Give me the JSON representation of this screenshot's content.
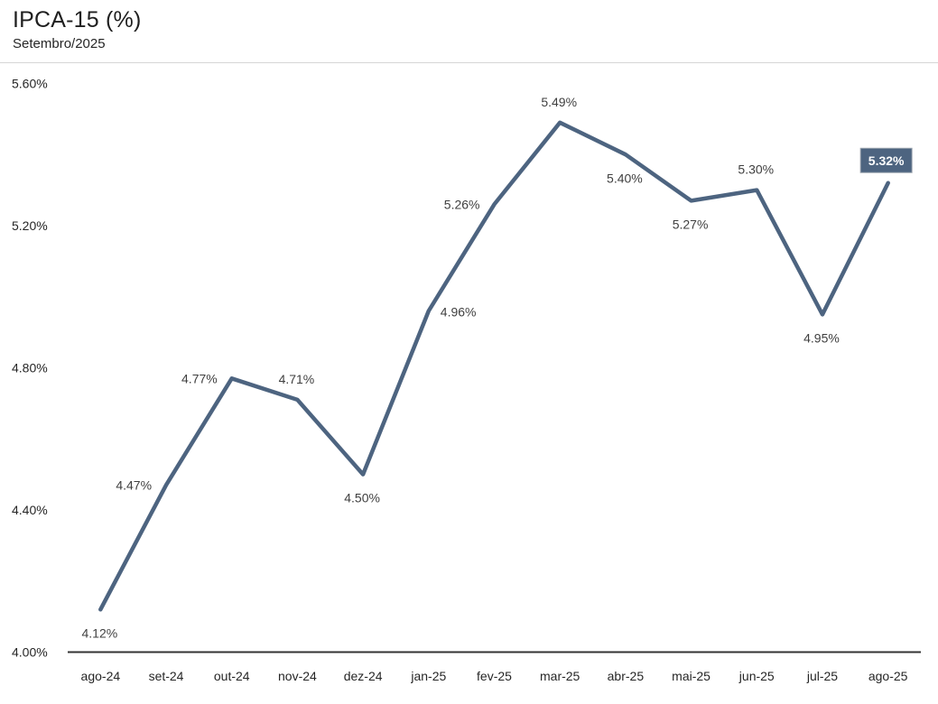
{
  "header": {
    "title": "IPCA-15 (%)",
    "subtitle": "Setembro/2025"
  },
  "colors": {
    "line": "#4d6480",
    "highlight_box_fill": "#4d6480",
    "highlight_box_border": "#9aa3ae",
    "highlight_text": "#ffffff",
    "data_label": "#3f3f3f",
    "axis_line": "#333333",
    "tick_label": "#262626",
    "divider": "#d6d6d6"
  },
  "chart_data": {
    "type": "line",
    "title": "IPCA-15 (%)",
    "subtitle": "Setembro/2025",
    "categories": [
      "ago-24",
      "set-24",
      "out-24",
      "nov-24",
      "dez-24",
      "jan-25",
      "fev-25",
      "mar-25",
      "abr-25",
      "mai-25",
      "jun-25",
      "jul-25",
      "ago-25"
    ],
    "values": [
      4.12,
      4.47,
      4.77,
      4.71,
      4.5,
      4.96,
      5.26,
      5.49,
      5.4,
      5.27,
      5.3,
      4.95,
      5.32
    ],
    "point_labels": [
      "4.12%",
      "4.47%",
      "4.77%",
      "4.71%",
      "4.50%",
      "4.96%",
      "5.26%",
      "5.49%",
      "5.40%",
      "5.27%",
      "5.30%",
      "4.95%",
      "5.32%"
    ],
    "label_positions": [
      "below",
      "left",
      "left",
      "above",
      "below",
      "right",
      "left",
      "above",
      "below",
      "below",
      "above",
      "below",
      "boxed-above"
    ],
    "highlight_index": 12,
    "xlabel": "",
    "ylabel": "",
    "y_axis": {
      "min": 4.0,
      "max": 5.6,
      "step": 0.4,
      "tick_values": [
        5.6,
        5.2,
        4.8,
        4.4,
        4.0
      ],
      "tick_labels": [
        "5.60%",
        "5.20%",
        "4.80%",
        "4.40%",
        "4.00%"
      ]
    },
    "grid": false,
    "legend": false,
    "markers": false
  }
}
